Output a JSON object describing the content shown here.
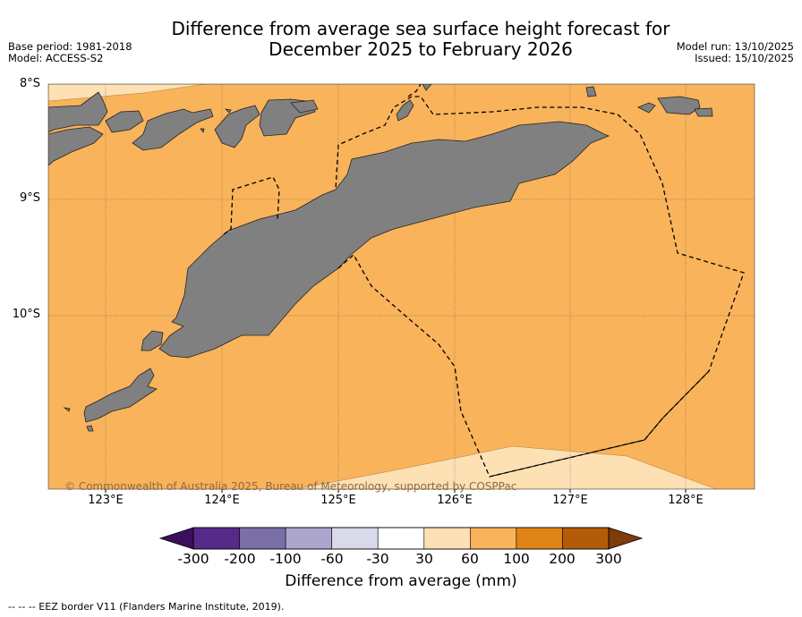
{
  "title": {
    "line1": "Difference from average sea surface height forecast for",
    "line2": "December 2025 to February 2026"
  },
  "meta_left": {
    "base_period": "Base period: 1981-2018",
    "model": "Model: ACCESS-S2"
  },
  "meta_right": {
    "model_run": "Model run: 13/10/2025",
    "issued": "Issued: 15/10/2025"
  },
  "map": {
    "lat_labels": [
      "8°S",
      "9°S",
      "10°S"
    ],
    "lon_labels": [
      "123°E",
      "124°E",
      "125°E",
      "126°E",
      "127°E",
      "128°E"
    ],
    "copyright": "© Commonwealth of Australia 2025, Bureau of Meteorology, supported by COSPPac",
    "colors": {
      "ocean_main": "#f9b35b",
      "ocean_light": "#fde0b4",
      "land": "#808080"
    }
  },
  "colorbar": {
    "ticks": [
      "-300",
      "-200",
      "-100",
      "-60",
      "-30",
      "30",
      "60",
      "100",
      "200",
      "300"
    ],
    "colors": [
      "#3b0f5c",
      "#562a8a",
      "#7b6faa",
      "#aca5cd",
      "#d8d9ea",
      "#ffffff",
      "#fde0b4",
      "#f9b35b",
      "#e08417",
      "#b45b09",
      "#7f3b08"
    ],
    "title": "Difference from average (mm)"
  },
  "footer": "--  --  -- EEZ border V11 (Flanders Marine Institute, 2019)."
}
